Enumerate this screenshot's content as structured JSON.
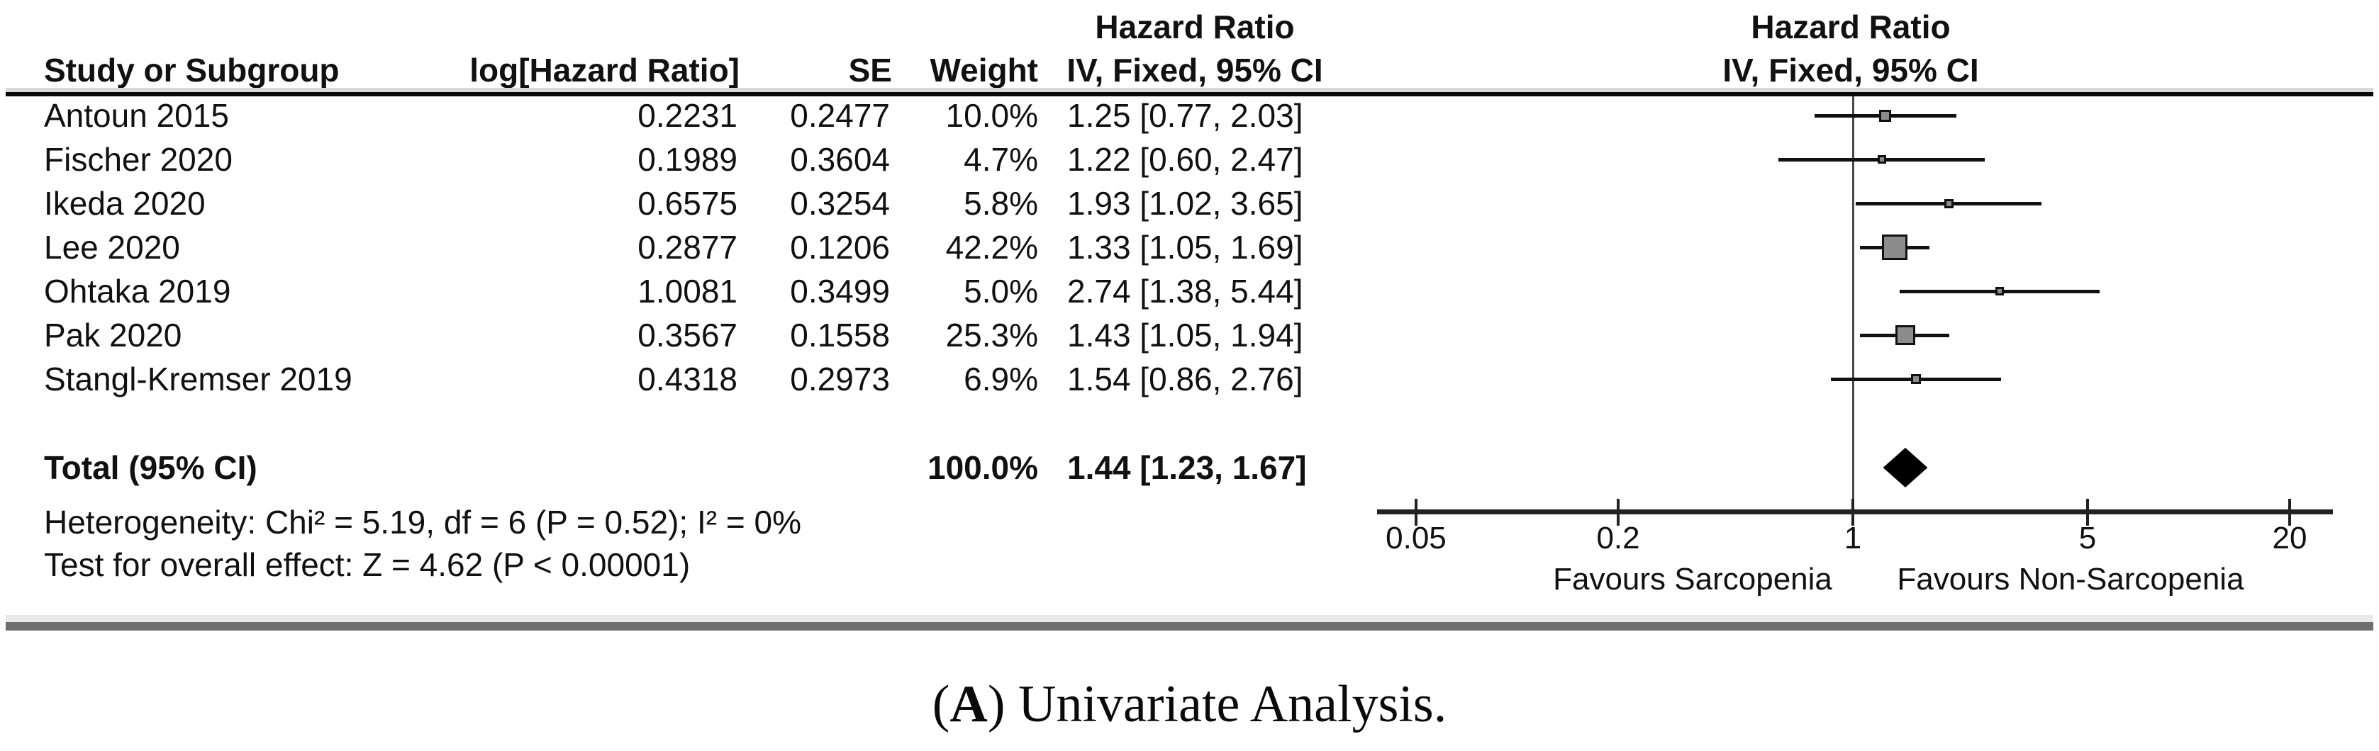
{
  "chart_data": {
    "type": "forest",
    "effect_measure": "Hazard Ratio",
    "model": "IV, Fixed, 95% CI",
    "scale": "log",
    "studies": [
      {
        "study": "Antoun 2015",
        "log_hr": "0.2231",
        "se": "0.2477",
        "weight": "10.0%",
        "weight_pct": 10.0,
        "hr_ci": "1.25 [0.77, 2.03]",
        "hr": 1.25,
        "ci_low": 0.77,
        "ci_high": 2.03
      },
      {
        "study": "Fischer 2020",
        "log_hr": "0.1989",
        "se": "0.3604",
        "weight": "4.7%",
        "weight_pct": 4.7,
        "hr_ci": "1.22 [0.60, 2.47]",
        "hr": 1.22,
        "ci_low": 0.6,
        "ci_high": 2.47
      },
      {
        "study": "Ikeda 2020",
        "log_hr": "0.6575",
        "se": "0.3254",
        "weight": "5.8%",
        "weight_pct": 5.8,
        "hr_ci": "1.93 [1.02, 3.65]",
        "hr": 1.93,
        "ci_low": 1.02,
        "ci_high": 3.65
      },
      {
        "study": "Lee 2020",
        "log_hr": "0.2877",
        "se": "0.1206",
        "weight": "42.2%",
        "weight_pct": 42.2,
        "hr_ci": "1.33 [1.05, 1.69]",
        "hr": 1.33,
        "ci_low": 1.05,
        "ci_high": 1.69
      },
      {
        "study": "Ohtaka 2019",
        "log_hr": "1.0081",
        "se": "0.3499",
        "weight": "5.0%",
        "weight_pct": 5.0,
        "hr_ci": "2.74 [1.38, 5.44]",
        "hr": 2.74,
        "ci_low": 1.38,
        "ci_high": 5.44
      },
      {
        "study": "Pak 2020",
        "log_hr": "0.3567",
        "se": "0.1558",
        "weight": "25.3%",
        "weight_pct": 25.3,
        "hr_ci": "1.43 [1.05, 1.94]",
        "hr": 1.43,
        "ci_low": 1.05,
        "ci_high": 1.94
      },
      {
        "study": "Stangl-Kremser 2019",
        "log_hr": "0.4318",
        "se": "0.2973",
        "weight": "6.9%",
        "weight_pct": 6.9,
        "hr_ci": "1.54 [0.86, 2.76]",
        "hr": 1.54,
        "ci_low": 0.86,
        "ci_high": 2.76
      }
    ],
    "total": {
      "label": "Total (95% CI)",
      "weight": "100.0%",
      "hr_ci": "1.44 [1.23, 1.67]",
      "hr": 1.44,
      "ci_low": 1.23,
      "ci_high": 1.67
    },
    "heterogeneity": "Heterogeneity: Chi² = 5.19, df = 6 (P = 0.52); I² = 0%",
    "overall_effect": "Test for overall effect: Z = 4.62 (P < 0.00001)",
    "axis": {
      "ticks": [
        "0.05",
        "0.2",
        "1",
        "5",
        "20"
      ],
      "min": 0.05,
      "max": 20
    },
    "favours_left": "Favours Sarcopenia",
    "favours_right": "Favours Non-Sarcopenia"
  },
  "header": {
    "col_study": "Study or Subgroup",
    "col_log_hr": "log[Hazard Ratio]",
    "col_se": "SE",
    "col_weight": "Weight",
    "col_hr_line1": "Hazard Ratio",
    "col_hr_line2": "IV, Fixed, 95% CI",
    "plot_hr_line1": "Hazard Ratio",
    "plot_hr_line2": "IV, Fixed, 95% CI"
  },
  "caption": {
    "open": "(",
    "letter": "A",
    "rest": ") Univariate Analysis."
  },
  "colors": {
    "square_fill": "#8c8c8c",
    "square_border": "#111111",
    "diamond": "#000000",
    "ci_line": "#111111",
    "axis_line": "#222222",
    "separator": "#6f6f6f",
    "text": "#111111"
  }
}
